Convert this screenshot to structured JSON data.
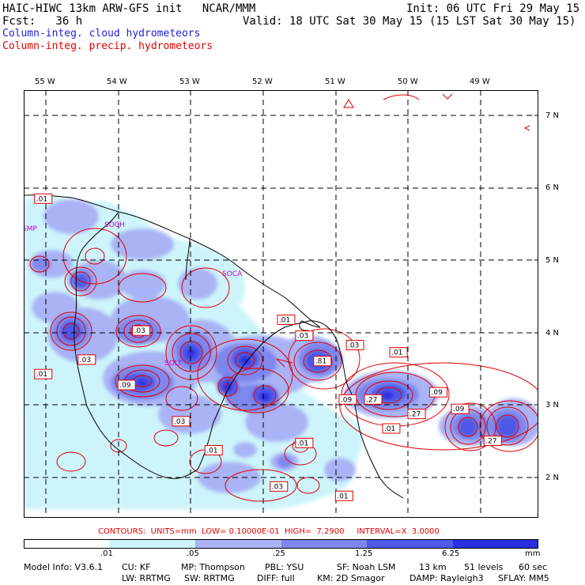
{
  "header": {
    "line1_left": "HAIC-HIWC 13km ARW-GFS init   NCAR/MMM",
    "line1_right": "Init: 06 UTC Fri 29 May 15",
    "line2_left": "Fcst:   36 h",
    "line2_right": "Valid: 18 UTC Sat 30 May 15 (15 LST Sat 30 May 15)",
    "line3": "Column-integ. cloud hydrometeors",
    "line4": "Column-integ. precip. hydrometeors"
  },
  "colors": {
    "cloud_series": "#1f1fd6",
    "precip_series": "#e00000",
    "shade_levels": [
      "#ffffff",
      "#cdf4fb",
      "#a9b3f5",
      "#7e87ee",
      "#5058e6",
      "#2a2ee0"
    ]
  },
  "axes": {
    "lon_labels": [
      "55 W",
      "54 W",
      "53 W",
      "52 W",
      "51 W",
      "50 W",
      "49 W"
    ],
    "lat_labels": [
      "7 N",
      "6 N",
      "5 N",
      "4 N",
      "3 N",
      "2 N"
    ]
  },
  "place_labels": [
    "SMP",
    "SOCH",
    "SOCA",
    "SOLT"
  ],
  "contour_labels": [
    {
      "t": ".01",
      "lon": -55.2,
      "lat": 5.82
    },
    {
      "t": ".01",
      "lon": -51.85,
      "lat": 4.15
    },
    {
      "t": ".03",
      "lon": -53.85,
      "lat": 4.0
    },
    {
      "t": ".03",
      "lon": -51.6,
      "lat": 3.93
    },
    {
      "t": ".03",
      "lon": -54.6,
      "lat": 3.6
    },
    {
      "t": ".03",
      "lon": -50.9,
      "lat": 3.8
    },
    {
      "t": ".01",
      "lon": -50.3,
      "lat": 3.7
    },
    {
      "t": ".81",
      "lon": -51.35,
      "lat": 3.58
    },
    {
      "t": ".01",
      "lon": -55.2,
      "lat": 3.4
    },
    {
      "t": ".09",
      "lon": -54.05,
      "lat": 3.25
    },
    {
      "t": ".09",
      "lon": -51.0,
      "lat": 3.05
    },
    {
      "t": ".27",
      "lon": -50.65,
      "lat": 3.05
    },
    {
      "t": ".09",
      "lon": -49.75,
      "lat": 3.15
    },
    {
      "t": ".09",
      "lon": -49.45,
      "lat": 2.92
    },
    {
      "t": ".27",
      "lon": -50.05,
      "lat": 2.85
    },
    {
      "t": ".03",
      "lon": -53.3,
      "lat": 2.75
    },
    {
      "t": ".01",
      "lon": -50.4,
      "lat": 2.65
    },
    {
      "t": ".27",
      "lon": -49.0,
      "lat": 2.48
    },
    {
      "t": ".01",
      "lon": -51.6,
      "lat": 2.45
    },
    {
      "t": ".01",
      "lon": -52.85,
      "lat": 2.35
    },
    {
      "t": ".03",
      "lon": -51.95,
      "lat": 1.85
    },
    {
      "t": ".01",
      "lon": -51.05,
      "lat": 1.72
    }
  ],
  "colorbar": {
    "tick_labels": [
      ".01",
      ".05",
      ".25",
      "1.25",
      "6.25"
    ],
    "unit": "mm"
  },
  "contours_info": "CONTOURS:  UNITS=mm  LOW= 0.10000E-01  HIGH=  7.2900     INTERVAL=X  3.0000",
  "model_info": {
    "line1": [
      {
        "key": "mi_version",
        "t": "Model Info: V3.6.1"
      },
      {
        "key": "mi_cu",
        "t": "CU: KF"
      },
      {
        "key": "mi_mp",
        "t": "MP: Thompson"
      },
      {
        "key": "mi_pbl",
        "t": "PBL: YSU"
      },
      {
        "key": "mi_sf",
        "t": "SF: Noah LSM"
      },
      {
        "key": "mi_res",
        "t": "13 km"
      },
      {
        "key": "mi_levels",
        "t": "51 levels"
      },
      {
        "key": "mi_dt",
        "t": "60 sec"
      }
    ],
    "line2": [
      {
        "key": "mi_lw",
        "t": "LW: RRTMG"
      },
      {
        "key": "mi_sw",
        "t": "SW: RRTMG"
      },
      {
        "key": "mi_diff",
        "t": "DIFF: full"
      },
      {
        "key": "mi_km",
        "t": "KM: 2D Smagor"
      },
      {
        "key": "mi_damp",
        "t": "DAMP: Rayleigh3"
      },
      {
        "key": "mi_sflay",
        "t": "SFLAY: MM5"
      }
    ]
  }
}
